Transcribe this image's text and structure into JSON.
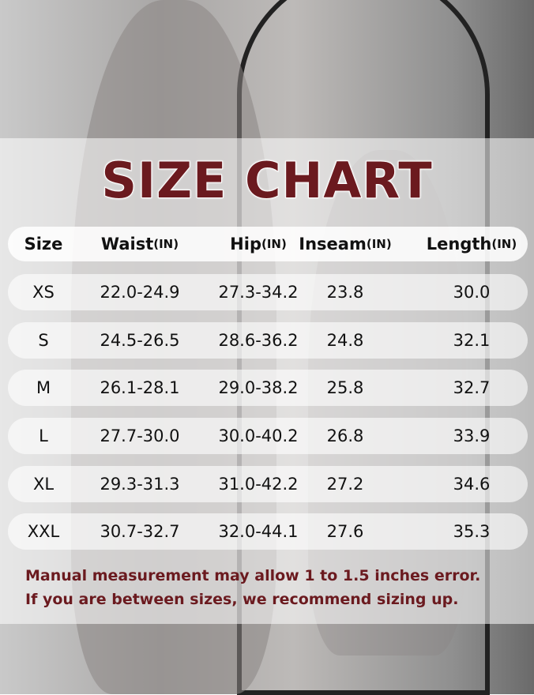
{
  "title": "SIZE CHART",
  "table": {
    "headers": [
      {
        "label": "Size",
        "unit": ""
      },
      {
        "label": "Waist",
        "unit": "(IN)"
      },
      {
        "label": "Hip",
        "unit": "(IN)"
      },
      {
        "label": "Inseam",
        "unit": "(IN)"
      },
      {
        "label": "Length",
        "unit": "(IN)"
      }
    ],
    "rows": [
      [
        "XS",
        "22.0-24.9",
        "27.3-34.2",
        "23.8",
        "30.0"
      ],
      [
        "S",
        "24.5-26.5",
        "28.6-36.2",
        "24.8",
        "32.1"
      ],
      [
        "M",
        "26.1-28.1",
        "29.0-38.2",
        "25.8",
        "32.7"
      ],
      [
        "L",
        "27.7-30.0",
        "30.0-40.2",
        "26.8",
        "33.9"
      ],
      [
        "XL",
        "29.3-31.3",
        "31.0-42.2",
        "27.2",
        "34.6"
      ],
      [
        "XXL",
        "30.7-32.7",
        "32.0-44.1",
        "27.6",
        "35.3"
      ]
    ]
  },
  "notes": [
    "Manual measurement may allow 1 to 1.5 inches error.",
    "If you are between sizes, we recommend sizing up."
  ],
  "colors": {
    "accent": "#6b1a1f"
  }
}
